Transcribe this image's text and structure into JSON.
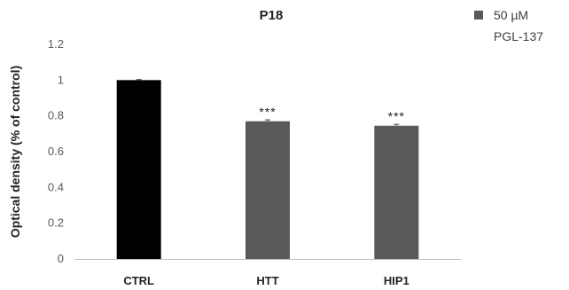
{
  "chart_data": {
    "type": "bar",
    "title": "P18",
    "xlabel": "",
    "ylabel": "Optical density (% of control)",
    "categories": [
      "CTRL",
      "HTT",
      "HIP1"
    ],
    "values": [
      1.0,
      0.77,
      0.745
    ],
    "errors": [
      0.003,
      0.008,
      0.008
    ],
    "bar_colors": [
      "#000000",
      "#595959",
      "#595959"
    ],
    "significance": [
      "",
      "***",
      "***"
    ],
    "ylim": [
      0,
      1.2
    ],
    "yticks": [
      0,
      0.2,
      0.4,
      0.6,
      0.8,
      1,
      1.2
    ],
    "ytick_labels": [
      "0",
      "0.2",
      "0.4",
      "0.6",
      "0.8",
      "1",
      "1.2"
    ],
    "grid": false,
    "legend": {
      "placement": "top-right",
      "entries": [
        {
          "label_line1": "50 µM",
          "label_line2": "PGL-137",
          "color": "#595959"
        }
      ]
    }
  }
}
